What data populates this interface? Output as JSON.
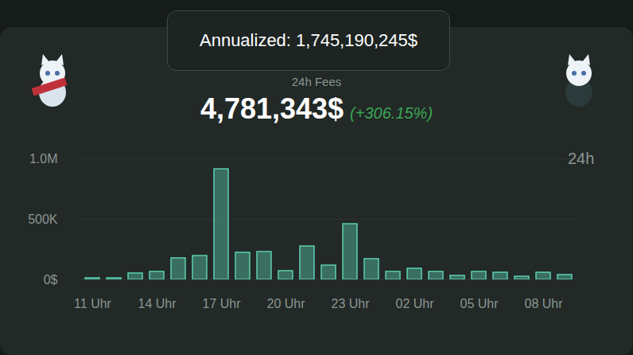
{
  "header": {
    "tooltip": "Annualized: 1,745,190,245$",
    "value": "4,781,343$",
    "change": "(+306.15%)",
    "period": "24h"
  },
  "chart_data": {
    "type": "bar",
    "title": "24h Fees",
    "categories": [
      "11 Uhr",
      null,
      null,
      "14 Uhr",
      null,
      null,
      "17 Uhr",
      null,
      null,
      "20 Uhr",
      null,
      null,
      "23 Uhr",
      null,
      null,
      "02 Uhr",
      null,
      null,
      "05 Uhr",
      null,
      null,
      "08 Uhr",
      null
    ],
    "values": [
      13000,
      13000,
      53000,
      66000,
      178000,
      197000,
      914000,
      224000,
      230000,
      72000,
      276000,
      118000,
      460000,
      171000,
      66000,
      92000,
      66000,
      33000,
      66000,
      59000,
      26000,
      59000,
      40000
    ],
    "color": "#5ccfb1",
    "ylim": [
      0,
      1000000
    ],
    "yticks": [
      {
        "value": 0,
        "label": "0$"
      },
      {
        "value": 500000,
        "label": "500K"
      },
      {
        "value": 1000000,
        "label": "1.0M"
      }
    ],
    "grid": true
  }
}
